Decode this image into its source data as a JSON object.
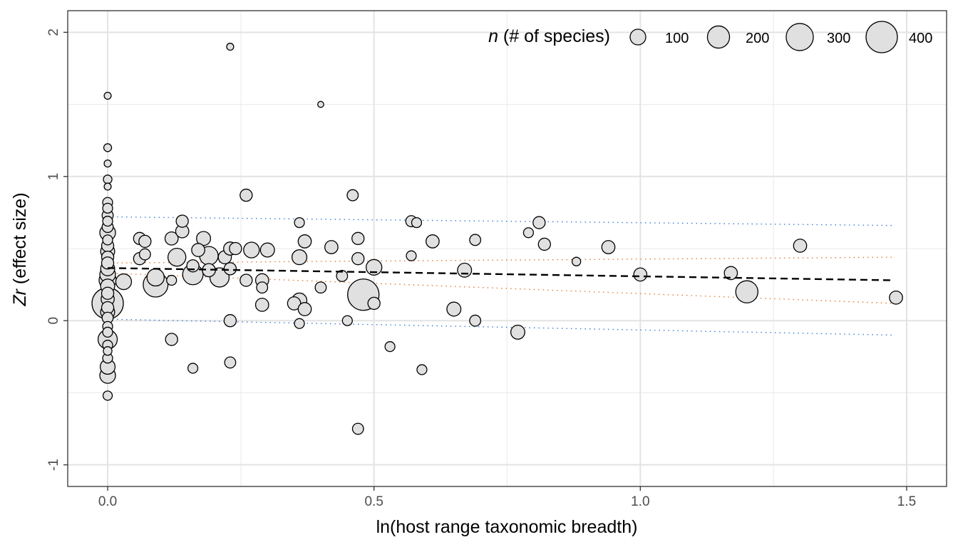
{
  "chart_data": {
    "type": "scatter",
    "xlabel": "ln(host range taxonomic breadth)",
    "ylabel_italic": "Zr",
    "ylabel_rest": " (effect size)",
    "xlim": [
      -0.075,
      1.575
    ],
    "ylim": [
      -1.15,
      2.15
    ],
    "x_ticks": [
      0.0,
      0.5,
      1.0,
      1.5
    ],
    "x_tick_labels": [
      "0.0",
      "0.5",
      "1.0",
      "1.5"
    ],
    "y_ticks": [
      -1,
      0,
      1,
      2
    ],
    "y_tick_labels": [
      "-1",
      "0",
      "1",
      "2"
    ],
    "grid": true,
    "legend": {
      "title_italic": "n",
      "title_rest": " (# of species)",
      "position": "top-right",
      "sizes": [
        100,
        200,
        300,
        400
      ],
      "labels": [
        "100",
        "200",
        "300",
        "400"
      ]
    },
    "point_fill": "#e0e0e0",
    "point_stroke": "#000000",
    "points": [
      {
        "x": 0.0,
        "y": 1.56,
        "n": 20
      },
      {
        "x": 0.0,
        "y": 1.2,
        "n": 25
      },
      {
        "x": 0.0,
        "y": 1.09,
        "n": 20
      },
      {
        "x": 0.0,
        "y": 0.98,
        "n": 30
      },
      {
        "x": 0.0,
        "y": 0.93,
        "n": 20
      },
      {
        "x": 0.0,
        "y": 0.82,
        "n": 40
      },
      {
        "x": 0.0,
        "y": 0.78,
        "n": 40
      },
      {
        "x": 0.0,
        "y": 0.73,
        "n": 50
      },
      {
        "x": 0.0,
        "y": 0.69,
        "n": 40
      },
      {
        "x": 0.0,
        "y": 0.65,
        "n": 50
      },
      {
        "x": 0.0,
        "y": 0.61,
        "n": 100
      },
      {
        "x": 0.0,
        "y": 0.56,
        "n": 40
      },
      {
        "x": 0.0,
        "y": 0.52,
        "n": 60
      },
      {
        "x": 0.0,
        "y": 0.48,
        "n": 80
      },
      {
        "x": 0.0,
        "y": 0.44,
        "n": 60
      },
      {
        "x": 0.0,
        "y": 0.4,
        "n": 60
      },
      {
        "x": 0.0,
        "y": 0.36,
        "n": 80
      },
      {
        "x": 0.0,
        "y": 0.32,
        "n": 100
      },
      {
        "x": 0.0,
        "y": 0.28,
        "n": 120
      },
      {
        "x": 0.0,
        "y": 0.24,
        "n": 80
      },
      {
        "x": 0.0,
        "y": 0.19,
        "n": 60
      },
      {
        "x": 0.0,
        "y": 0.15,
        "n": 70
      },
      {
        "x": 0.0,
        "y": 0.12,
        "n": 400
      },
      {
        "x": 0.0,
        "y": 0.09,
        "n": 60
      },
      {
        "x": 0.0,
        "y": 0.06,
        "n": 80
      },
      {
        "x": 0.0,
        "y": 0.02,
        "n": 50
      },
      {
        "x": 0.0,
        "y": -0.04,
        "n": 40
      },
      {
        "x": 0.0,
        "y": -0.08,
        "n": 40
      },
      {
        "x": 0.0,
        "y": -0.13,
        "n": 150
      },
      {
        "x": 0.0,
        "y": -0.17,
        "n": 40
      },
      {
        "x": 0.0,
        "y": -0.21,
        "n": 30
      },
      {
        "x": 0.0,
        "y": -0.26,
        "n": 40
      },
      {
        "x": 0.0,
        "y": -0.32,
        "n": 90
      },
      {
        "x": 0.0,
        "y": -0.38,
        "n": 100
      },
      {
        "x": 0.0,
        "y": -0.52,
        "n": 35
      },
      {
        "x": 0.03,
        "y": 0.27,
        "n": 100
      },
      {
        "x": 0.06,
        "y": 0.57,
        "n": 60
      },
      {
        "x": 0.06,
        "y": 0.43,
        "n": 60
      },
      {
        "x": 0.07,
        "y": 0.55,
        "n": 60
      },
      {
        "x": 0.07,
        "y": 0.46,
        "n": 50
      },
      {
        "x": 0.09,
        "y": 0.3,
        "n": 120
      },
      {
        "x": 0.09,
        "y": 0.25,
        "n": 250
      },
      {
        "x": 0.12,
        "y": 0.57,
        "n": 70
      },
      {
        "x": 0.12,
        "y": 0.28,
        "n": 40
      },
      {
        "x": 0.12,
        "y": -0.13,
        "n": 60
      },
      {
        "x": 0.13,
        "y": 0.44,
        "n": 130
      },
      {
        "x": 0.14,
        "y": 0.69,
        "n": 60
      },
      {
        "x": 0.14,
        "y": 0.62,
        "n": 70
      },
      {
        "x": 0.16,
        "y": 0.38,
        "n": 60
      },
      {
        "x": 0.16,
        "y": 0.32,
        "n": 170
      },
      {
        "x": 0.16,
        "y": -0.33,
        "n": 40
      },
      {
        "x": 0.17,
        "y": 0.49,
        "n": 70
      },
      {
        "x": 0.18,
        "y": 0.57,
        "n": 80
      },
      {
        "x": 0.19,
        "y": 0.35,
        "n": 70
      },
      {
        "x": 0.19,
        "y": 0.45,
        "n": 140
      },
      {
        "x": 0.21,
        "y": 0.3,
        "n": 150
      },
      {
        "x": 0.22,
        "y": 0.44,
        "n": 70
      },
      {
        "x": 0.23,
        "y": 1.9,
        "n": 20
      },
      {
        "x": 0.23,
        "y": 0.5,
        "n": 70
      },
      {
        "x": 0.23,
        "y": 0.36,
        "n": 60
      },
      {
        "x": 0.23,
        "y": 0.0,
        "n": 60
      },
      {
        "x": 0.23,
        "y": -0.29,
        "n": 50
      },
      {
        "x": 0.24,
        "y": 0.5,
        "n": 60
      },
      {
        "x": 0.26,
        "y": 0.87,
        "n": 60
      },
      {
        "x": 0.26,
        "y": 0.28,
        "n": 60
      },
      {
        "x": 0.27,
        "y": 0.49,
        "n": 100
      },
      {
        "x": 0.29,
        "y": 0.28,
        "n": 70
      },
      {
        "x": 0.29,
        "y": 0.23,
        "n": 50
      },
      {
        "x": 0.29,
        "y": 0.11,
        "n": 70
      },
      {
        "x": 0.3,
        "y": 0.49,
        "n": 80
      },
      {
        "x": 0.35,
        "y": 0.12,
        "n": 70
      },
      {
        "x": 0.36,
        "y": 0.68,
        "n": 40
      },
      {
        "x": 0.36,
        "y": 0.44,
        "n": 90
      },
      {
        "x": 0.36,
        "y": 0.14,
        "n": 90
      },
      {
        "x": 0.36,
        "y": -0.02,
        "n": 40
      },
      {
        "x": 0.37,
        "y": 0.55,
        "n": 70
      },
      {
        "x": 0.37,
        "y": 0.08,
        "n": 70
      },
      {
        "x": 0.4,
        "y": 1.5,
        "n": 15
      },
      {
        "x": 0.4,
        "y": 0.23,
        "n": 50
      },
      {
        "x": 0.42,
        "y": 0.51,
        "n": 70
      },
      {
        "x": 0.44,
        "y": 0.31,
        "n": 50
      },
      {
        "x": 0.45,
        "y": 0.0,
        "n": 40
      },
      {
        "x": 0.46,
        "y": 0.87,
        "n": 50
      },
      {
        "x": 0.47,
        "y": 0.57,
        "n": 60
      },
      {
        "x": 0.47,
        "y": 0.43,
        "n": 60
      },
      {
        "x": 0.47,
        "y": -0.75,
        "n": 50
      },
      {
        "x": 0.48,
        "y": 0.18,
        "n": 400
      },
      {
        "x": 0.5,
        "y": 0.37,
        "n": 100
      },
      {
        "x": 0.5,
        "y": 0.12,
        "n": 60
      },
      {
        "x": 0.53,
        "y": -0.18,
        "n": 40
      },
      {
        "x": 0.57,
        "y": 0.69,
        "n": 50
      },
      {
        "x": 0.57,
        "y": 0.45,
        "n": 40
      },
      {
        "x": 0.58,
        "y": 0.68,
        "n": 40
      },
      {
        "x": 0.59,
        "y": -0.34,
        "n": 40
      },
      {
        "x": 0.61,
        "y": 0.55,
        "n": 70
      },
      {
        "x": 0.65,
        "y": 0.08,
        "n": 80
      },
      {
        "x": 0.67,
        "y": 0.35,
        "n": 80
      },
      {
        "x": 0.69,
        "y": 0.56,
        "n": 50
      },
      {
        "x": 0.69,
        "y": 0.0,
        "n": 50
      },
      {
        "x": 0.77,
        "y": -0.08,
        "n": 80
      },
      {
        "x": 0.79,
        "y": 0.61,
        "n": 40
      },
      {
        "x": 0.81,
        "y": 0.68,
        "n": 60
      },
      {
        "x": 0.82,
        "y": 0.53,
        "n": 60
      },
      {
        "x": 0.88,
        "y": 0.41,
        "n": 30
      },
      {
        "x": 0.94,
        "y": 0.51,
        "n": 70
      },
      {
        "x": 1.0,
        "y": 0.32,
        "n": 70
      },
      {
        "x": 1.17,
        "y": 0.33,
        "n": 70
      },
      {
        "x": 1.2,
        "y": 0.2,
        "n": 200
      },
      {
        "x": 1.3,
        "y": 0.52,
        "n": 70
      },
      {
        "x": 1.48,
        "y": 0.16,
        "n": 70
      }
    ],
    "fit_line": {
      "x": [
        0.0,
        1.475
      ],
      "y": [
        0.365,
        0.28
      ],
      "color": "#000000",
      "style": "dashed"
    },
    "confidence_band": {
      "x": [
        0.0,
        1.475
      ],
      "upper": [
        0.4,
        0.44
      ],
      "lower": [
        0.33,
        0.12
      ],
      "color": "#e07b39",
      "style": "dotted"
    },
    "prediction_band": {
      "x": [
        0.0,
        1.475
      ],
      "upper": [
        0.72,
        0.66
      ],
      "lower": [
        0.01,
        -0.1
      ],
      "color": "#3a7fd5",
      "style": "dotted"
    }
  }
}
